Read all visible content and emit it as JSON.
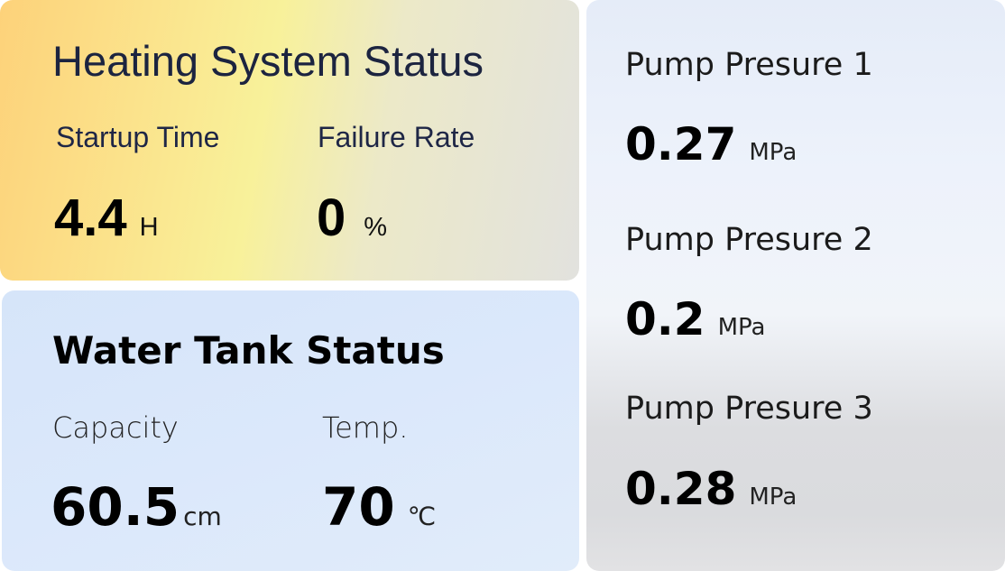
{
  "heating": {
    "title": "Heating System Status",
    "startup_time": {
      "label": "Startup Time",
      "value": "4.4",
      "unit": "H"
    },
    "failure_rate": {
      "label": "Failure Rate",
      "value": "0",
      "unit": "%"
    }
  },
  "water_tank": {
    "title": "Water Tank Status",
    "capacity": {
      "label": "Capacity",
      "value": "60.5",
      "unit": "cm"
    },
    "temp": {
      "label": "Temp.",
      "value": "70",
      "unit": "℃"
    }
  },
  "pumps": [
    {
      "label": "Pump Presure 1",
      "value": "0.27",
      "unit": "MPa"
    },
    {
      "label": "Pump Presure 2",
      "value": "0.2",
      "unit": "MPa"
    },
    {
      "label": "Pump Presure 3",
      "value": "0.28",
      "unit": "MPa"
    }
  ]
}
